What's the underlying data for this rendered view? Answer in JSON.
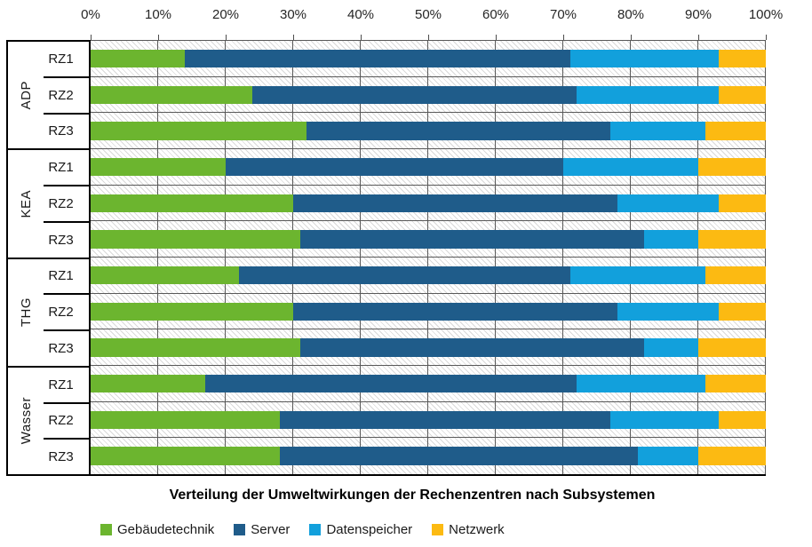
{
  "chart_data": {
    "type": "bar",
    "orientation": "horizontal",
    "stacked": true,
    "grid": true,
    "title": "Verteilung der Umweltwirkungen der Rechenzentren nach Subsystemen",
    "x_axis": {
      "min": 0,
      "max": 100,
      "unit": "%",
      "ticks": [
        "0%",
        "10%",
        "20%",
        "30%",
        "40%",
        "50%",
        "60%",
        "70%",
        "80%",
        "90%",
        "100%"
      ]
    },
    "series": [
      {
        "name": "Gebäudetechnik",
        "color": "#6CB52F"
      },
      {
        "name": "Server",
        "color": "#1F5C8A"
      },
      {
        "name": "Datenspeicher",
        "color": "#12A0DC"
      },
      {
        "name": "Netzwerk",
        "color": "#FCBA12"
      }
    ],
    "groups": [
      {
        "label": "ADP",
        "rows": [
          {
            "label": "RZ1",
            "values": [
              14,
              57,
              22,
              7
            ]
          },
          {
            "label": "RZ2",
            "values": [
              24,
              48,
              21,
              7
            ]
          },
          {
            "label": "RZ3",
            "values": [
              32,
              45,
              14,
              9
            ]
          }
        ]
      },
      {
        "label": "KEA",
        "rows": [
          {
            "label": "RZ1",
            "values": [
              20,
              50,
              20,
              10
            ]
          },
          {
            "label": "RZ2",
            "values": [
              30,
              48,
              15,
              7
            ]
          },
          {
            "label": "RZ3",
            "values": [
              31,
              51,
              8,
              10
            ]
          }
        ]
      },
      {
        "label": "THG",
        "rows": [
          {
            "label": "RZ1",
            "values": [
              22,
              49,
              20,
              9
            ]
          },
          {
            "label": "RZ2",
            "values": [
              30,
              48,
              15,
              7
            ]
          },
          {
            "label": "RZ3",
            "values": [
              31,
              51,
              8,
              10
            ]
          }
        ]
      },
      {
        "label": "Wasser",
        "rows": [
          {
            "label": "RZ1",
            "values": [
              17,
              55,
              19,
              9
            ]
          },
          {
            "label": "RZ2",
            "values": [
              28,
              49,
              16,
              7
            ]
          },
          {
            "label": "RZ3",
            "values": [
              28,
              53,
              9,
              10
            ]
          }
        ]
      }
    ],
    "legend_position": "bottom",
    "colors": {
      "gridline": "#595959",
      "axis_border": "#000000",
      "hatch_line": "#d9d9d9",
      "text": "#1a1a1a"
    }
  }
}
